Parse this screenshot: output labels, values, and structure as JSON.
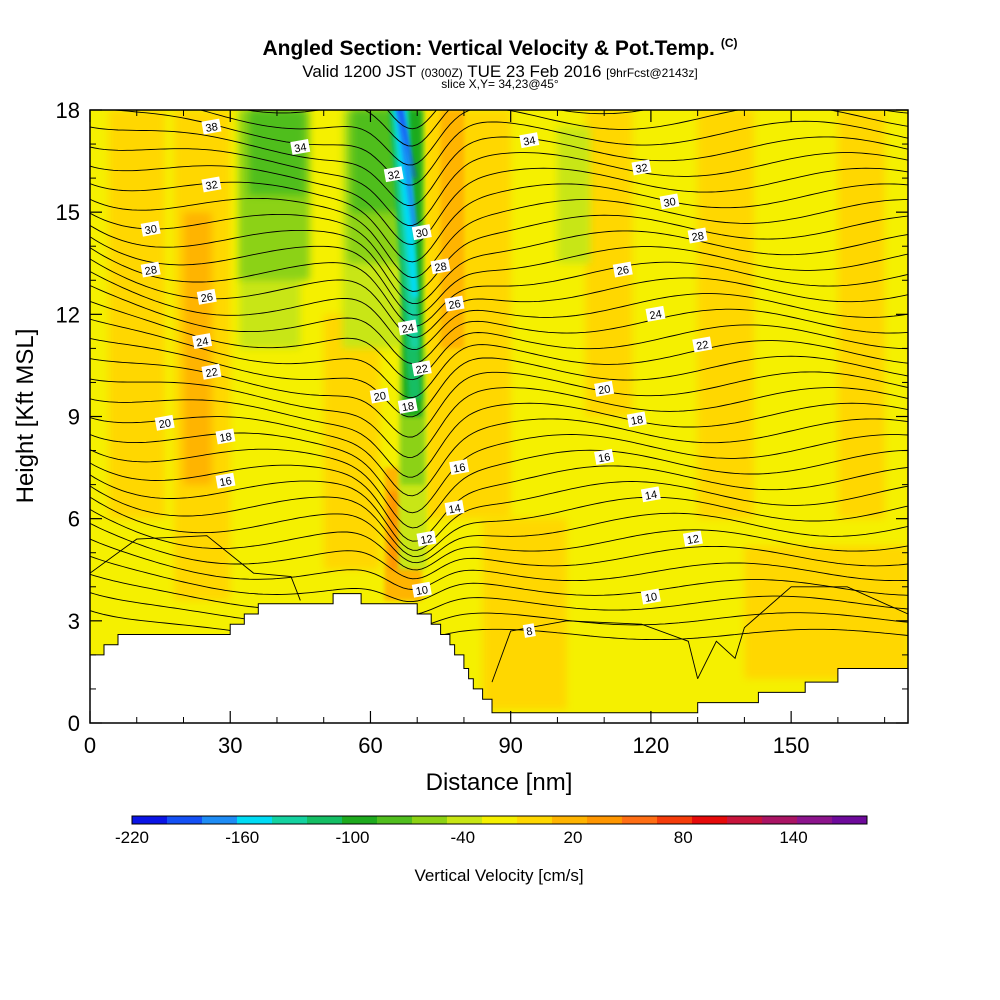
{
  "header": {
    "title": "Angled Section: Vertical Velocity & Pot.Temp.",
    "title_suffix": "(C)",
    "valid_prefix": "Valid 1200 JST",
    "valid_utc": "(0300Z)",
    "valid_date": "TUE 23 Feb 2016",
    "forecast": "[9hrFcst@2143z]",
    "slice": "slice X,Y= 34,23@45°"
  },
  "chart_data": {
    "type": "heatmap",
    "xlabel": "Distance [nm]",
    "ylabel": "Height [Kft MSL]",
    "xlim": [
      0,
      175
    ],
    "ylim": [
      0,
      18
    ],
    "x_ticks": [
      0,
      30,
      60,
      90,
      120,
      150
    ],
    "y_ticks": [
      0,
      3,
      6,
      9,
      12,
      15,
      18
    ],
    "colorbar": {
      "label": "Vertical Velocity [cm/s]",
      "tick_labels": [
        "-220",
        "-160",
        "-100",
        "-40",
        "20",
        "80",
        "140"
      ],
      "tick_values": [
        -220,
        -160,
        -100,
        -40,
        20,
        80,
        140
      ],
      "range": [
        -220,
        180
      ],
      "colors": [
        "#0a14e6",
        "#1450f5",
        "#1e8cf5",
        "#00dcf5",
        "#14d2a0",
        "#14be64",
        "#1eaa1e",
        "#50be1e",
        "#8cd214",
        "#c8e614",
        "#f5f000",
        "#ffd700",
        "#ffb400",
        "#ff9600",
        "#ff6e14",
        "#f53c0a",
        "#e60a0a",
        "#c8143c",
        "#aa1464",
        "#8c148c",
        "#6e0a9b"
      ]
    },
    "terrain": [
      [
        0,
        2.0
      ],
      [
        3,
        2.0
      ],
      [
        3,
        2.3
      ],
      [
        6,
        2.3
      ],
      [
        6,
        2.6
      ],
      [
        30,
        2.6
      ],
      [
        30,
        2.9
      ],
      [
        33,
        2.9
      ],
      [
        33,
        3.2
      ],
      [
        36,
        3.2
      ],
      [
        36,
        3.5
      ],
      [
        52,
        3.5
      ],
      [
        52,
        3.8
      ],
      [
        58,
        3.8
      ],
      [
        58,
        3.5
      ],
      [
        70,
        3.5
      ],
      [
        70,
        3.2
      ],
      [
        73,
        3.2
      ],
      [
        73,
        2.9
      ],
      [
        75,
        2.9
      ],
      [
        75,
        2.6
      ],
      [
        77,
        2.6
      ],
      [
        77,
        2.3
      ],
      [
        78,
        2.3
      ],
      [
        78,
        2.0
      ],
      [
        80,
        2.0
      ],
      [
        80,
        1.6
      ],
      [
        81,
        1.6
      ],
      [
        81,
        1.3
      ],
      [
        82,
        1.3
      ],
      [
        82,
        1.0
      ],
      [
        84,
        1.0
      ],
      [
        84,
        0.7
      ],
      [
        86,
        0.7
      ],
      [
        86,
        0.3
      ],
      [
        130,
        0.3
      ],
      [
        130,
        0.6
      ],
      [
        143,
        0.6
      ],
      [
        143,
        0.9
      ],
      [
        153,
        0.9
      ],
      [
        153,
        1.2
      ],
      [
        160,
        1.2
      ],
      [
        160,
        1.6
      ],
      [
        175,
        1.6
      ]
    ],
    "contour_labels": [
      {
        "text": "38",
        "x": 26,
        "y": 17.5
      },
      {
        "text": "34",
        "x": 45,
        "y": 16.9
      },
      {
        "text": "32",
        "x": 26,
        "y": 15.8
      },
      {
        "text": "30",
        "x": 13,
        "y": 14.5
      },
      {
        "text": "28",
        "x": 13,
        "y": 13.3
      },
      {
        "text": "26",
        "x": 25,
        "y": 12.5
      },
      {
        "text": "24",
        "x": 24,
        "y": 11.2
      },
      {
        "text": "22",
        "x": 26,
        "y": 10.3
      },
      {
        "text": "20",
        "x": 16,
        "y": 8.8
      },
      {
        "text": "18",
        "x": 29,
        "y": 8.4
      },
      {
        "text": "16",
        "x": 29,
        "y": 7.1
      },
      {
        "text": "32",
        "x": 65,
        "y": 16.1
      },
      {
        "text": "30",
        "x": 71,
        "y": 14.4
      },
      {
        "text": "28",
        "x": 75,
        "y": 13.4
      },
      {
        "text": "26",
        "x": 78,
        "y": 12.3
      },
      {
        "text": "24",
        "x": 68,
        "y": 11.6
      },
      {
        "text": "22",
        "x": 71,
        "y": 10.4
      },
      {
        "text": "20",
        "x": 62,
        "y": 9.6
      },
      {
        "text": "18",
        "x": 68,
        "y": 9.3
      },
      {
        "text": "16",
        "x": 79,
        "y": 7.5
      },
      {
        "text": "14",
        "x": 78,
        "y": 6.3
      },
      {
        "text": "12",
        "x": 72,
        "y": 5.4
      },
      {
        "text": "10",
        "x": 71,
        "y": 3.9
      },
      {
        "text": "8",
        "x": 94,
        "y": 2.7
      },
      {
        "text": "34",
        "x": 94,
        "y": 17.1
      },
      {
        "text": "32",
        "x": 118,
        "y": 16.3
      },
      {
        "text": "30",
        "x": 124,
        "y": 15.3
      },
      {
        "text": "28",
        "x": 130,
        "y": 14.3
      },
      {
        "text": "26",
        "x": 114,
        "y": 13.3
      },
      {
        "text": "24",
        "x": 121,
        "y": 12.0
      },
      {
        "text": "22",
        "x": 131,
        "y": 11.1
      },
      {
        "text": "20",
        "x": 110,
        "y": 9.8
      },
      {
        "text": "18",
        "x": 117,
        "y": 8.9
      },
      {
        "text": "16",
        "x": 110,
        "y": 7.8
      },
      {
        "text": "14",
        "x": 120,
        "y": 6.7
      },
      {
        "text": "12",
        "x": 129,
        "y": 5.4
      },
      {
        "text": "10",
        "x": 120,
        "y": 3.7
      }
    ]
  }
}
